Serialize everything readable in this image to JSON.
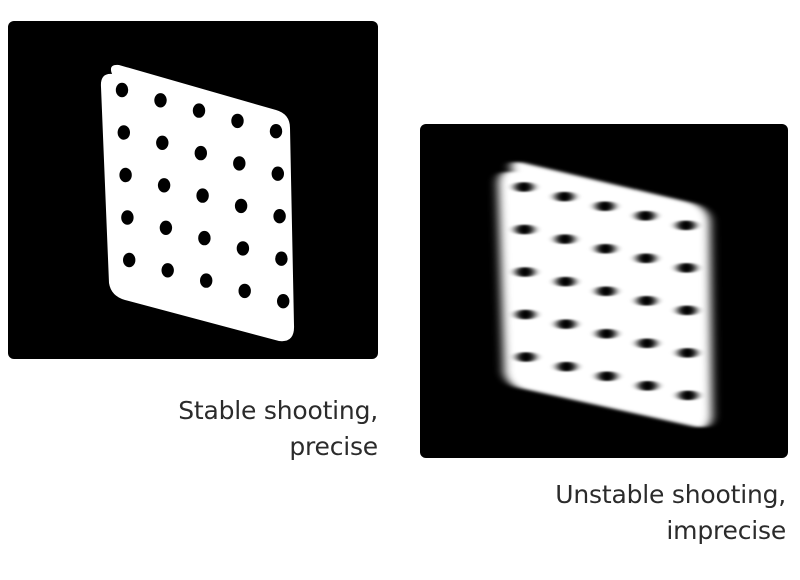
{
  "colors": {
    "panel_background": "#000000",
    "card": "#ffffff",
    "dot": "#000000",
    "caption_text": "#2b2b2b"
  },
  "panels": [
    {
      "name": "stable",
      "caption_lines": [
        "Stable shooting,",
        "precise"
      ],
      "grid": {
        "rows": 5,
        "cols": 5
      },
      "blurred": false
    },
    {
      "name": "unstable",
      "caption_lines": [
        "Unstable shooting,",
        "imprecise"
      ],
      "grid": {
        "rows": 5,
        "cols": 5
      },
      "blurred": true
    }
  ]
}
